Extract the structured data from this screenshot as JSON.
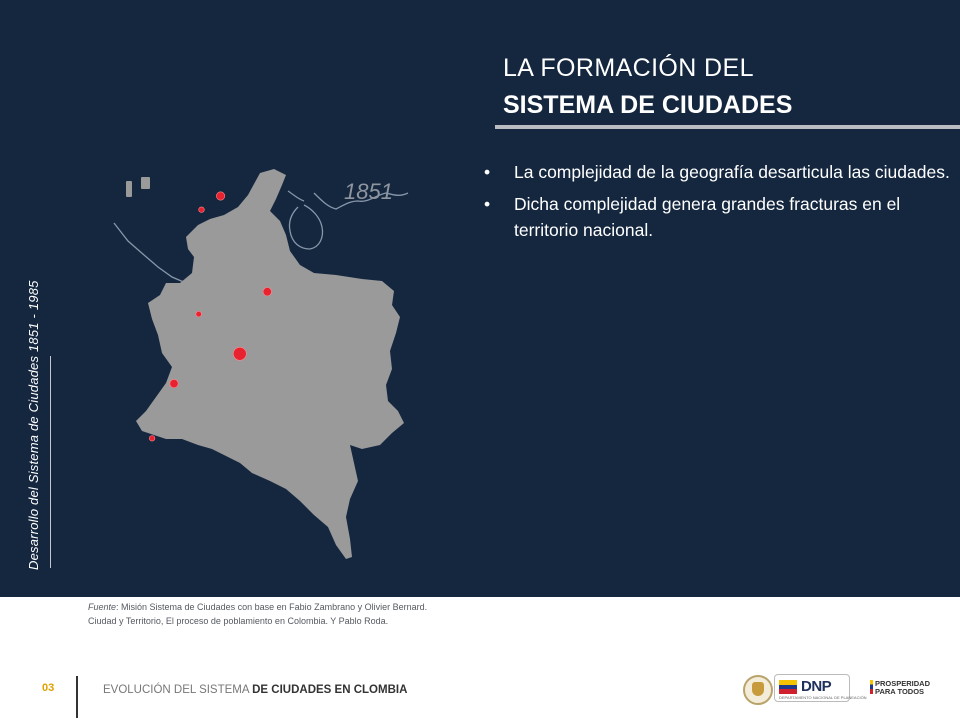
{
  "slide": {
    "side_title": "Desarrollo del Sistema de Ciudades 1851 - 1985",
    "title_line1": "LA FORMACIÓN DEL",
    "title_line2": "SISTEMA DE CIUDADES",
    "bullets": [
      "La complejidad de la geografía desarticula las ciudades.",
      "Dicha complejidad genera grandes fracturas en el territorio nacional."
    ],
    "bullet_symbol": "•"
  },
  "map": {
    "year_label": "1851",
    "country_color": "#9a9a9a",
    "city_color": "#e8232f",
    "border_line_color": "#8796a8",
    "cities": [
      {
        "lon": -75.5,
        "lat": 10.4,
        "size": "small"
      },
      {
        "lon": -74.8,
        "lat": 10.95,
        "size": "medium"
      },
      {
        "lon": -75.6,
        "lat": 6.2,
        "size": "small"
      },
      {
        "lon": -74.1,
        "lat": 4.6,
        "size": "large"
      },
      {
        "lon": -73.1,
        "lat": 7.1,
        "size": "medium"
      },
      {
        "lon": -76.5,
        "lat": 3.4,
        "size": "medium"
      },
      {
        "lon": -77.3,
        "lat": 1.2,
        "size": "small"
      }
    ]
  },
  "source": {
    "label": "Fuente",
    "text_line1": ": Misión Sistema de Ciudades con base en Fabio Zambrano y Olivier Bernard.",
    "text_line2": "Ciudad y Territorio, El proceso de poblamiento en Colombia. Y Pablo Roda."
  },
  "footer": {
    "page_number": "03",
    "text_plain": "EVOLUCIÓN DEL SISTEMA ",
    "text_bold": "DE CIUDADES EN CLOMBIA",
    "logo_dnp": "DNP",
    "logo_dnp_sub": "DEPARTAMENTO NACIONAL DE PLANEACIÓN",
    "logo_pp_line1": "PROSPERIDAD",
    "logo_pp_line2": "PARA TODOS",
    "flag_colors": [
      "#f5c400",
      "#1e3a8a",
      "#d0202e"
    ]
  }
}
